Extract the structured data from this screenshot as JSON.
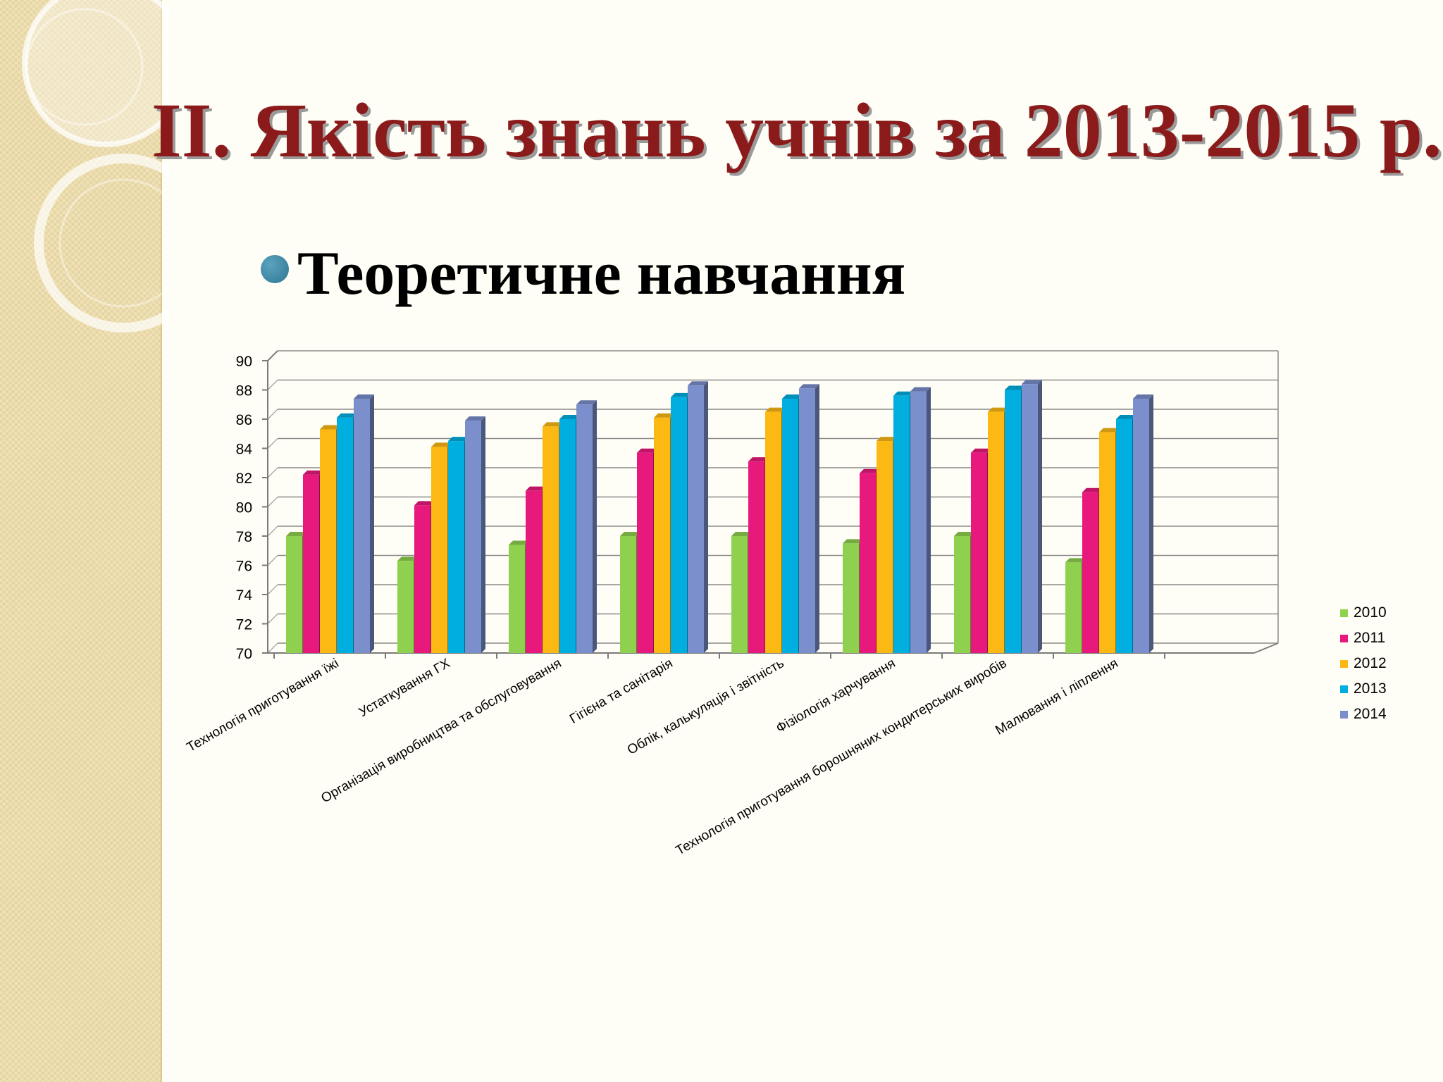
{
  "slide": {
    "title": "II. Якість знань учнів за 2013-2015 р.",
    "subtitle": "Теоретичне навчання"
  },
  "colors": {
    "title": "#8b1a1a",
    "bullet": "#3a86a5",
    "series": [
      "#8fd14f",
      "#e8197d",
      "#fdb913",
      "#00aee0",
      "#7b8fcc"
    ]
  },
  "chart_data": {
    "type": "bar",
    "title": "",
    "xlabel": "",
    "ylabel": "",
    "ylim": [
      70,
      90
    ],
    "yticks": [
      70,
      72,
      74,
      76,
      78,
      80,
      82,
      84,
      86,
      88,
      90
    ],
    "grid": true,
    "legend_position": "right",
    "categories": [
      "Технологія приготування їжі",
      "Устаткування ГХ",
      "Організація виробництва та обслуговування",
      "Гігієна та санітарія",
      "Облік, калькуляція і звітність",
      "Фізіологія харчування",
      "Технологія приготування борошняних кондитерських виробів",
      "Малювання і ліплення"
    ],
    "series": [
      {
        "name": "2010",
        "values": [
          78.0,
          76.3,
          77.4,
          78.0,
          78.0,
          77.5,
          78.0,
          76.2
        ]
      },
      {
        "name": "2011",
        "values": [
          82.2,
          80.1,
          81.1,
          83.7,
          83.1,
          82.3,
          83.7,
          81.0
        ]
      },
      {
        "name": "2012",
        "values": [
          85.3,
          84.1,
          85.5,
          86.1,
          86.5,
          84.5,
          86.5,
          85.1
        ]
      },
      {
        "name": "2013",
        "values": [
          86.1,
          84.5,
          86.0,
          87.5,
          87.4,
          87.6,
          88.0,
          86.0
        ]
      },
      {
        "name": "2014",
        "values": [
          87.4,
          85.9,
          87.0,
          88.3,
          88.1,
          87.9,
          88.4,
          87.4
        ]
      }
    ]
  }
}
